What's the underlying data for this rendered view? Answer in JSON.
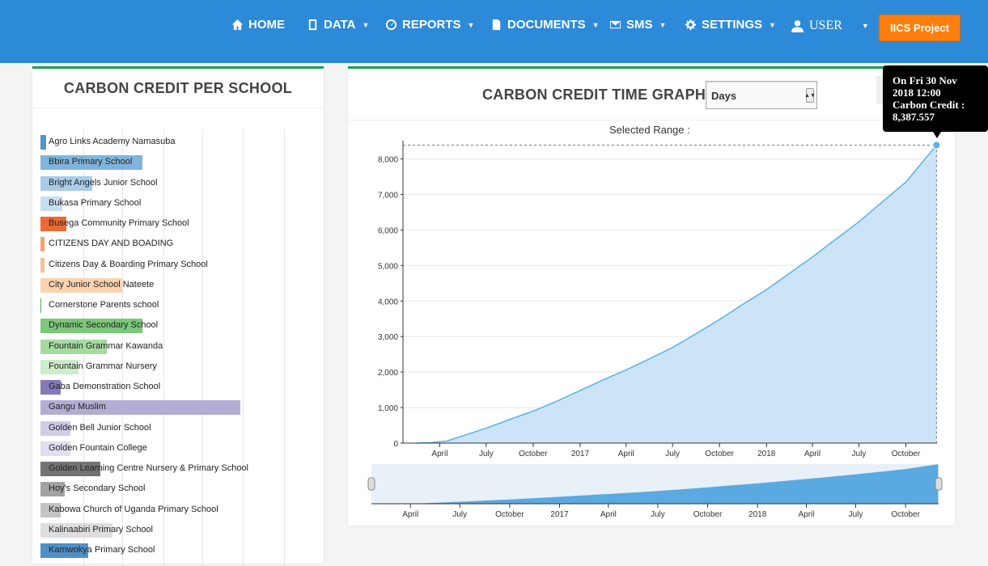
{
  "nav": {
    "home": "HOME",
    "data": "DATA",
    "reports": "REPORTS",
    "documents": "DOCUMENTS",
    "sms": "SMS",
    "settings": "SETTINGS",
    "user": "USER",
    "project_button": "IICS Project",
    "color": "#2d8ad8",
    "button_color": "#ff7f0e"
  },
  "left_panel": {
    "title": "CARBON CREDIT PER SCHOOL",
    "schools": [
      {
        "name": "Agro Links Academy Namasuba",
        "value": 0.03,
        "color": "#5294c8"
      },
      {
        "name": "Bbira Primary School",
        "value": 0.51,
        "color": "#7fb5dc"
      },
      {
        "name": "Bright Angels Junior School",
        "value": 0.26,
        "color": "#a8cbe9"
      },
      {
        "name": "Bukasa Primary School",
        "value": 0.11,
        "color": "#c8ddf0"
      },
      {
        "name": "Busega Community Primary School",
        "value": 0.13,
        "color": "#ec6a32"
      },
      {
        "name": "CITIZENS DAY AND BOADING",
        "value": 0.02,
        "color": "#f7a26b"
      },
      {
        "name": "Citizens Day & Boarding Primary School",
        "value": 0.02,
        "color": "#f9bf95"
      },
      {
        "name": "City Junior School Nateete",
        "value": 0.41,
        "color": "#fbd3b0"
      },
      {
        "name": "Cornerstone Parents school",
        "value": 0.0,
        "color": "#4caa5a"
      },
      {
        "name": "Dynamic Secondary School",
        "value": 0.51,
        "color": "#7cc77a"
      },
      {
        "name": "Fountain Grammar Kawanda",
        "value": 0.33,
        "color": "#a6dba0"
      },
      {
        "name": "Fountain Grammar Nursery",
        "value": 0.19,
        "color": "#cdeccb"
      },
      {
        "name": "Gaba Demonstration School",
        "value": 0.1,
        "color": "#8579b8"
      },
      {
        "name": "Gangu Muslim",
        "value": 1.0,
        "color": "#b3add4"
      },
      {
        "name": "Golden Bell Junior School",
        "value": 0.15,
        "color": "#cfcbe5"
      },
      {
        "name": "Golden Fountain College",
        "value": 0.15,
        "color": "#e1def0"
      },
      {
        "name": "Golden Learning Centre Nursery & Primary School",
        "value": 0.3,
        "color": "#737373"
      },
      {
        "name": "Hoy's Secondary School",
        "value": 0.12,
        "color": "#a3a3a3"
      },
      {
        "name": "Kabowa Church of Uganda Primary School",
        "value": 0.1,
        "color": "#c4c4c4"
      },
      {
        "name": "Kalinaabiri Primary School",
        "value": 0.36,
        "color": "#dedede"
      },
      {
        "name": "Kamwokya Primary School",
        "value": 0.24,
        "color": "#4f8fc6"
      }
    ]
  },
  "right_panel": {
    "title": "CARBON CREDIT TIME GRAPH",
    "range_select": "Days",
    "selected_range_label": "Selected Range :"
  },
  "tooltip": {
    "line1": "On Fri 30 Nov",
    "line2": "2018 12:00",
    "line3": "Carbon Credit :",
    "line4": "8,387.557"
  },
  "chart_data": {
    "type": "area",
    "title": "CARBON CREDIT TIME GRAPH",
    "x_tick_labels": [
      "April",
      "July",
      "October",
      "2017",
      "April",
      "July",
      "October",
      "2018",
      "April",
      "July",
      "October"
    ],
    "yticks": [
      0,
      1000,
      2000,
      3000,
      4000,
      5000,
      6000,
      7000,
      8000
    ],
    "ytick_labels": [
      "0",
      "1,000",
      "2,000",
      "3,000",
      "4,000",
      "5,000",
      "6,000",
      "7,000",
      "8,000"
    ],
    "ylim": [
      0,
      8400
    ],
    "x": [
      "2016-02-15",
      "2016-03-15",
      "2016-04-15",
      "2016-05-15",
      "2016-07-01",
      "2016-08-15",
      "2016-10-01",
      "2016-11-15",
      "2017-01-01",
      "2017-02-15",
      "2017-04-01",
      "2017-05-15",
      "2017-07-01",
      "2017-08-15",
      "2017-10-01",
      "2017-11-15",
      "2018-01-01",
      "2018-02-15",
      "2018-04-01",
      "2018-05-15",
      "2018-07-01",
      "2018-08-15",
      "2018-10-01",
      "2018-11-30"
    ],
    "series": [
      {
        "values": [
          0,
          15,
          60,
          200,
          420,
          660,
          900,
          1170,
          1480,
          1780,
          2060,
          2360,
          2690,
          3070,
          3480,
          3900,
          4320,
          4780,
          5240,
          5720,
          6230,
          6780,
          7350,
          8387.557
        ],
        "color": "#5cb0e6",
        "fill": "#cce4f7"
      }
    ],
    "highlight": {
      "x": "2018-11-30",
      "y": 8387.557
    },
    "grid": true,
    "legend": "none"
  }
}
